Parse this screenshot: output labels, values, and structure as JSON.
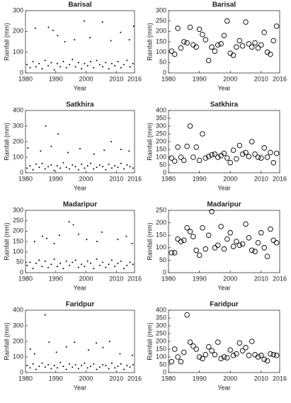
{
  "chart_data": [
    {
      "type": "scatter",
      "marker": "dot",
      "color": "#000000",
      "title": "Barisal",
      "xlabel": "Year",
      "ylabel": "Rainfall (mm)",
      "xlim": [
        1980,
        2016
      ],
      "xticks": [
        1980,
        1990,
        2000,
        2010,
        2016
      ],
      "ylim": [
        0,
        300
      ],
      "yticks": [
        0,
        100,
        200,
        300
      ],
      "x": [
        1980.5,
        1981.5,
        1982.5,
        1983.5,
        1984.5,
        1985.5,
        1986.5,
        1987.5,
        1988.5,
        1989.5,
        1990.5,
        1991.5,
        1992.5,
        1993.5,
        1994.5,
        1995.5,
        1996.5,
        1997.5,
        1998.5,
        1999.5,
        2000.5,
        2001.5,
        2002.5,
        2003.5,
        2004.5,
        2005.5,
        2006.5,
        2007.5,
        2008.5,
        2009.5,
        2010.5,
        2011.5,
        2012.5,
        2013.5,
        2014.5,
        2015.5,
        1983.2,
        1987.6,
        1989.1,
        1990.6,
        1993.0,
        1996.2,
        1999.4,
        2001.3,
        2005.4,
        2008.2,
        2011.4,
        2014.3,
        2015.7
      ],
      "values": [
        40,
        25,
        55,
        30,
        45,
        20,
        60,
        35,
        50,
        15,
        45,
        30,
        55,
        25,
        40,
        65,
        30,
        50,
        20,
        45,
        35,
        55,
        25,
        60,
        40,
        30,
        50,
        20,
        45,
        35,
        55,
        25,
        40,
        60,
        30,
        45,
        215,
        220,
        205,
        180,
        150,
        160,
        250,
        170,
        245,
        155,
        195,
        160,
        225
      ]
    },
    {
      "type": "scatter",
      "marker": "circle",
      "color": "#000000",
      "title": "Barisal",
      "xlabel": "Year",
      "ylabel": "Rainfall (mm)",
      "xlim": [
        1980,
        2016
      ],
      "xticks": [
        1980,
        1990,
        2000,
        2010,
        2016
      ],
      "ylim": [
        0,
        300
      ],
      "yticks": [
        0,
        50,
        100,
        150,
        200,
        250,
        300
      ],
      "x": [
        1981,
        1982,
        1983,
        1984,
        1985,
        1986,
        1987,
        1988,
        1989,
        1990,
        1991,
        1992,
        1993,
        1994,
        1995,
        1996,
        1997,
        1998,
        1999,
        2000,
        2001,
        2002,
        2003,
        2004,
        2005,
        2006,
        2007,
        2008,
        2009,
        2010,
        2011,
        2012,
        2013,
        2014,
        2015
      ],
      "values": [
        105,
        90,
        215,
        120,
        150,
        145,
        220,
        135,
        125,
        210,
        185,
        160,
        60,
        125,
        105,
        135,
        140,
        180,
        250,
        95,
        85,
        125,
        155,
        130,
        245,
        140,
        125,
        145,
        120,
        135,
        195,
        100,
        90,
        155,
        225
      ]
    },
    {
      "type": "scatter",
      "marker": "dot",
      "color": "#000000",
      "title": "Satkhira",
      "xlabel": "Year",
      "ylabel": "Rainfall (mm)",
      "xlim": [
        1980,
        2016
      ],
      "xticks": [
        1980,
        1990,
        2000,
        2010,
        2016
      ],
      "ylim": [
        0,
        400
      ],
      "yticks": [
        0,
        100,
        200,
        300,
        400
      ],
      "x": [
        1980.5,
        1981.5,
        1982.5,
        1983.5,
        1984.5,
        1985.5,
        1986.5,
        1987.5,
        1988.5,
        1989.5,
        1990.5,
        1991.5,
        1992.5,
        1993.5,
        1994.5,
        1995.5,
        1996.5,
        1997.5,
        1998.5,
        1999.5,
        2000.5,
        2001.5,
        2002.5,
        2003.5,
        2004.5,
        2005.5,
        2006.5,
        2007.5,
        2008.5,
        2009.5,
        2010.5,
        2011.5,
        2012.5,
        2013.5,
        2014.5,
        2015.5,
        1980.8,
        1985.0,
        1986.7,
        1988.5,
        1990.8,
        1994.0,
        1998.0,
        2002.6,
        2006.0,
        2008.3,
        2011.5,
        2014.2
      ],
      "values": [
        30,
        45,
        20,
        55,
        35,
        60,
        25,
        40,
        50,
        15,
        45,
        30,
        65,
        35,
        25,
        50,
        40,
        20,
        55,
        30,
        45,
        60,
        25,
        35,
        50,
        40,
        20,
        55,
        30,
        45,
        35,
        60,
        25,
        50,
        40,
        30,
        160,
        140,
        300,
        170,
        250,
        130,
        155,
        120,
        145,
        200,
        150,
        140
      ]
    },
    {
      "type": "scatter",
      "marker": "circle",
      "color": "#000000",
      "title": "Satkhira",
      "xlabel": "Year",
      "ylabel": "Rainfall (mm)",
      "xlim": [
        1980,
        2016
      ],
      "xticks": [
        1980,
        1990,
        2000,
        2010,
        2016
      ],
      "ylim": [
        0,
        400
      ],
      "yticks": [
        0,
        50,
        100,
        150,
        200,
        250,
        300,
        350,
        400
      ],
      "x": [
        1981,
        1982,
        1983,
        1984,
        1985,
        1986,
        1987,
        1988,
        1989,
        1990,
        1991,
        1992,
        1993,
        1994,
        1995,
        1996,
        1997,
        1998,
        1999,
        2000,
        2001,
        2002,
        2003,
        2004,
        2005,
        2006,
        2007,
        2008,
        2009,
        2010,
        2011,
        2012,
        2013,
        2014,
        2015
      ],
      "values": [
        95,
        75,
        165,
        100,
        80,
        170,
        300,
        100,
        165,
        80,
        250,
        95,
        105,
        115,
        120,
        100,
        110,
        125,
        95,
        65,
        145,
        90,
        175,
        120,
        130,
        105,
        200,
        120,
        100,
        95,
        160,
        100,
        130,
        65,
        125
      ]
    },
    {
      "type": "scatter",
      "marker": "dot",
      "color": "#000000",
      "title": "Madaripur",
      "xlabel": "Year",
      "ylabel": "Rainfall (mm)",
      "xlim": [
        1980,
        2016
      ],
      "xticks": [
        1980,
        1990,
        2000,
        2010,
        2016
      ],
      "ylim": [
        0,
        300
      ],
      "yticks": [
        0,
        50,
        100,
        150,
        200,
        250,
        300
      ],
      "x": [
        1980.5,
        1981.5,
        1982.5,
        1983.5,
        1984.5,
        1985.5,
        1986.5,
        1987.5,
        1988.5,
        1989.5,
        1990.5,
        1991.5,
        1992.5,
        1993.5,
        1994.5,
        1995.5,
        1996.5,
        1997.5,
        1998.5,
        1999.5,
        2000.5,
        2001.5,
        2002.5,
        2003.5,
        2004.5,
        2005.5,
        2006.5,
        2007.5,
        2008.5,
        2009.5,
        2010.5,
        2011.5,
        2012.5,
        2013.5,
        2014.5,
        2015.5,
        1983.0,
        1985.6,
        1987.0,
        1989.5,
        1991.2,
        1994.4,
        1995.8,
        1997.5,
        2000.2,
        2003.6,
        2005.2,
        2010.5,
        2013.3,
        2015.2
      ],
      "values": [
        35,
        50,
        20,
        45,
        60,
        30,
        55,
        25,
        40,
        65,
        30,
        45,
        20,
        55,
        35,
        50,
        60,
        25,
        40,
        30,
        55,
        45,
        20,
        65,
        35,
        50,
        25,
        40,
        60,
        30,
        45,
        55,
        20,
        35,
        50,
        40,
        150,
        175,
        165,
        140,
        180,
        245,
        230,
        185,
        160,
        150,
        195,
        160,
        175,
        140
      ]
    },
    {
      "type": "scatter",
      "marker": "circle",
      "color": "#000000",
      "title": "Madaripur",
      "xlabel": "Year",
      "ylabel": "Rainfall (mm)",
      "xlim": [
        1980,
        2016
      ],
      "xticks": [
        1980,
        1990,
        2000,
        2010,
        2016
      ],
      "ylim": [
        0,
        250
      ],
      "yticks": [
        0,
        50,
        100,
        150,
        200,
        250
      ],
      "x": [
        1981,
        1982,
        1983,
        1984,
        1985,
        1986,
        1987,
        1988,
        1989,
        1990,
        1991,
        1992,
        1993,
        1994,
        1995,
        1996,
        1997,
        1998,
        1999,
        2000,
        2001,
        2002,
        2003,
        2004,
        2005,
        2006,
        2007,
        2008,
        2009,
        2010,
        2011,
        2012,
        2013,
        2014,
        2015
      ],
      "values": [
        80,
        80,
        135,
        125,
        130,
        180,
        165,
        145,
        90,
        70,
        180,
        95,
        150,
        245,
        100,
        110,
        185,
        95,
        135,
        160,
        105,
        125,
        110,
        115,
        195,
        140,
        90,
        85,
        120,
        160,
        100,
        65,
        175,
        130,
        120
      ]
    },
    {
      "type": "scatter",
      "marker": "dot",
      "color": "#000000",
      "title": "Faridpur",
      "xlabel": "Year",
      "ylabel": "Rainfall (mm)",
      "xlim": [
        1980,
        2016
      ],
      "xticks": [
        1980,
        1990,
        2000,
        2010,
        2016
      ],
      "ylim": [
        0,
        400
      ],
      "yticks": [
        0,
        100,
        200,
        300,
        400
      ],
      "x": [
        1980.5,
        1981.5,
        1982.5,
        1983.5,
        1984.5,
        1985.5,
        1986.5,
        1987.5,
        1988.5,
        1989.5,
        1990.5,
        1991.5,
        1992.5,
        1993.5,
        1994.5,
        1995.5,
        1996.5,
        1997.5,
        1998.5,
        1999.5,
        2000.5,
        2001.5,
        2002.5,
        2003.5,
        2004.5,
        2005.5,
        2006.5,
        2007.5,
        2008.5,
        2009.5,
        2010.5,
        2011.5,
        2012.5,
        2013.5,
        2014.5,
        2015.5,
        1981.6,
        1983.0,
        1986.5,
        1987.8,
        1990.2,
        1993.5,
        1996.2,
        2000.8,
        2003.4,
        2005.6,
        2007.8,
        2011.2,
        2015.3
      ],
      "values": [
        45,
        30,
        55,
        20,
        40,
        60,
        35,
        50,
        25,
        45,
        30,
        65,
        40,
        20,
        55,
        35,
        50,
        25,
        45,
        60,
        30,
        40,
        55,
        20,
        35,
        50,
        45,
        25,
        60,
        30,
        40,
        55,
        20,
        45,
        35,
        50,
        150,
        120,
        370,
        195,
        130,
        165,
        195,
        145,
        190,
        160,
        200,
        120,
        110
      ]
    },
    {
      "type": "scatter",
      "marker": "circle",
      "color": "#000000",
      "title": "Faridpur",
      "xlabel": "Year",
      "ylabel": "Rainfall (mm)",
      "xlim": [
        1980,
        2016
      ],
      "xticks": [
        1980,
        1990,
        2000,
        2010,
        2016
      ],
      "ylim": [
        0,
        400
      ],
      "yticks": [
        0,
        50,
        100,
        150,
        200,
        250,
        300,
        350,
        400
      ],
      "x": [
        1981,
        1982,
        1983,
        1984,
        1985,
        1986,
        1987,
        1988,
        1989,
        1990,
        1991,
        1992,
        1993,
        1994,
        1995,
        1996,
        1997,
        1998,
        1999,
        2000,
        2001,
        2002,
        2003,
        2004,
        2005,
        2006,
        2007,
        2008,
        2009,
        2010,
        2011,
        2012,
        2013,
        2014,
        2015
      ],
      "values": [
        70,
        150,
        100,
        70,
        130,
        370,
        195,
        170,
        150,
        100,
        90,
        115,
        165,
        140,
        115,
        195,
        90,
        100,
        95,
        145,
        110,
        120,
        190,
        140,
        160,
        110,
        200,
        115,
        100,
        110,
        85,
        75,
        120,
        115,
        110
      ]
    }
  ]
}
